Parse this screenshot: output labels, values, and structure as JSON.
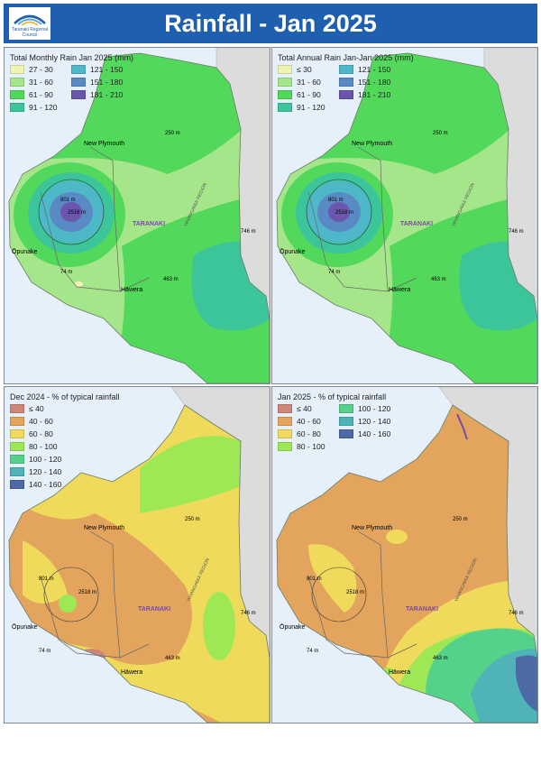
{
  "header": {
    "title": "Rainfall - Jan 2025",
    "logo_text": "Taranaki Regional Council",
    "background": "#1f5fb0"
  },
  "colors": {
    "sea": "#e6f0fa",
    "land_outside": "#dcdcdc",
    "range_27_30": "#edf5b4",
    "range_31_60": "#a6e68a",
    "range_61_90": "#52d85a",
    "range_91_120": "#3cc49a",
    "range_121_150": "#4fb8c8",
    "range_151_180": "#5a8ac4",
    "range_181_210": "#6a57ad",
    "pct_le_40": "#cf8678",
    "pct_40_60": "#e3a45e",
    "pct_60_80": "#efda5c",
    "pct_80_100": "#9ee856",
    "pct_100_120": "#55d28a",
    "pct_120_140": "#4fb3b8",
    "pct_140_160": "#4d6aa6"
  },
  "labels": {
    "new_plymouth": "New Plymouth",
    "opunake": "Ōpunake",
    "hawera": "Hāwera",
    "taranaki": "TARANAKI",
    "whanganui": "WHANGANUI REGION",
    "peak": "2518 m",
    "elev_801": "801 m",
    "elev_250": "250 m",
    "elev_746": "746 m",
    "elev_74": "74 m",
    "elev_463": "463 m"
  },
  "panels": [
    {
      "legend_title": "Total Monthly Rain Jan 2025 (mm)",
      "legend": [
        {
          "label": "27 - 30",
          "color": "#edf5b4"
        },
        {
          "label": "121 - 150",
          "color": "#4fb8c8"
        },
        {
          "label": "31 - 60",
          "color": "#a6e68a"
        },
        {
          "label": "151 - 180",
          "color": "#5a8ac4"
        },
        {
          "label": "61 - 90",
          "color": "#52d85a"
        },
        {
          "label": "181 - 210",
          "color": "#6a57ad"
        },
        {
          "label": "91 - 120",
          "color": "#3cc49a"
        }
      ]
    },
    {
      "legend_title": "Total Annual Rain Jan-Jan 2025 (mm)",
      "legend": [
        {
          "label": "≤ 30",
          "color": "#edf5b4"
        },
        {
          "label": "121 - 150",
          "color": "#4fb8c8"
        },
        {
          "label": "31 - 60",
          "color": "#a6e68a"
        },
        {
          "label": "151 - 180",
          "color": "#5a8ac4"
        },
        {
          "label": "61 - 90",
          "color": "#52d85a"
        },
        {
          "label": "181 - 210",
          "color": "#6a57ad"
        },
        {
          "label": "91 - 120",
          "color": "#3cc49a"
        }
      ]
    },
    {
      "legend_title": "Dec 2024 - % of typical rainfall",
      "legend": [
        {
          "label": "≤ 40",
          "color": "#cf8678"
        },
        {
          "label": "40 - 60",
          "color": "#e3a45e"
        },
        {
          "label": "60 - 80",
          "color": "#efda5c"
        },
        {
          "label": "80 - 100",
          "color": "#9ee856"
        },
        {
          "label": "100 - 120",
          "color": "#55d28a"
        },
        {
          "label": "120 - 140",
          "color": "#4fb3b8"
        },
        {
          "label": "140 - 160",
          "color": "#4d6aa6"
        }
      ]
    },
    {
      "legend_title": "Jan 2025 - % of typical rainfall",
      "legend": [
        {
          "label": "≤ 40",
          "color": "#cf8678"
        },
        {
          "label": "100 - 120",
          "color": "#55d28a"
        },
        {
          "label": "40 - 60",
          "color": "#e3a45e"
        },
        {
          "label": "120 - 140",
          "color": "#4fb3b8"
        },
        {
          "label": "60 - 80",
          "color": "#efda5c"
        },
        {
          "label": "140 - 160",
          "color": "#4d6aa6"
        },
        {
          "label": "80 - 100",
          "color": "#9ee856"
        }
      ]
    }
  ]
}
